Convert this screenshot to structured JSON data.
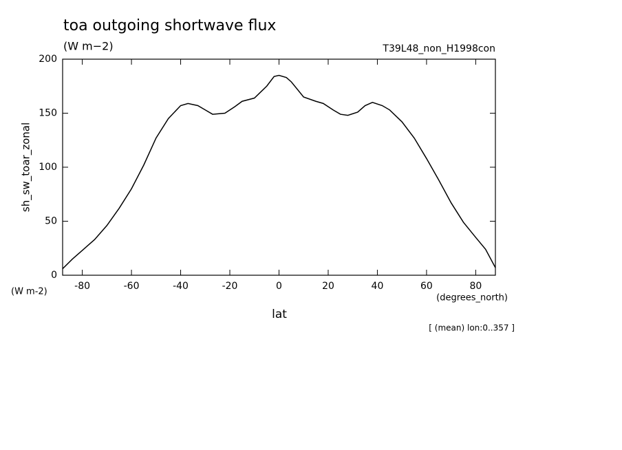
{
  "chart_data": {
    "type": "line",
    "title": "toa outgoing shortwave flux",
    "subtitle": "(W m−2)",
    "run_label": "T39L48_non_H1998con",
    "y_label": "sh_sw_toar_zonal",
    "y_units": "(W m-2)",
    "x_units": "(degrees_north)",
    "x_label": "lat",
    "note": "[ (mean) lon:0..357 ]",
    "x": [
      -88,
      -84,
      -80,
      -75,
      -70,
      -65,
      -60,
      -55,
      -50,
      -45,
      -40,
      -37,
      -33,
      -30,
      -27,
      -22,
      -18,
      -15,
      -10,
      -5,
      -2,
      0,
      3,
      5,
      10,
      15,
      18,
      22,
      25,
      28,
      32,
      35,
      38,
      42,
      45,
      50,
      55,
      60,
      65,
      70,
      75,
      80,
      84,
      88
    ],
    "series": [
      {
        "color": "#000000",
        "values": [
          6,
          15,
          23,
          33,
          46,
          62,
          80,
          102,
          127,
          145,
          157,
          159,
          157,
          153,
          149,
          150,
          156,
          161,
          164,
          175,
          184,
          185,
          183,
          179,
          165,
          161,
          159,
          153,
          149,
          148,
          151,
          157,
          160,
          157,
          153,
          142,
          127,
          108,
          88,
          67,
          49,
          35,
          24,
          7
        ]
      }
    ],
    "xlim": [
      -88,
      88
    ],
    "ylim": [
      0,
      200
    ],
    "xticks": [
      -80,
      -60,
      -40,
      -20,
      0,
      20,
      40,
      60,
      80
    ],
    "yticks": [
      0,
      50,
      100,
      150,
      200
    ]
  }
}
